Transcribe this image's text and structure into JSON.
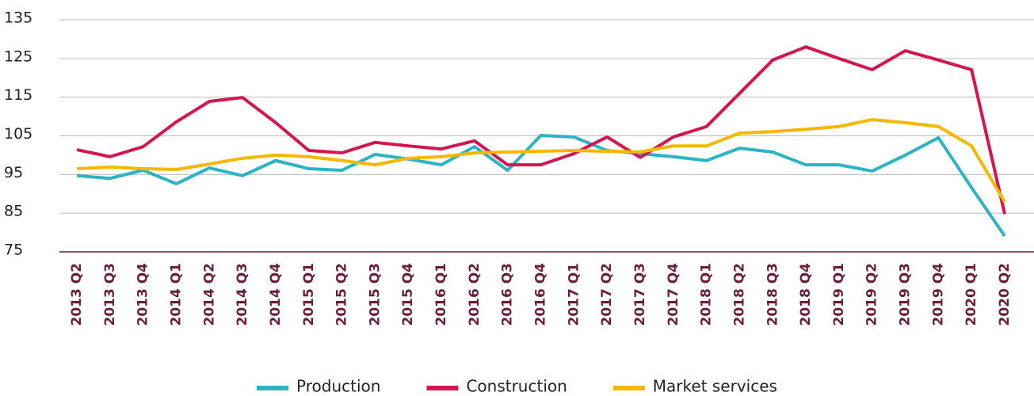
{
  "chart_data": {
    "type": "line",
    "categories": [
      "2013 Q2",
      "2013 Q3",
      "2013 Q4",
      "2014 Q1",
      "2014 Q2",
      "2014 Q3",
      "2014 Q4",
      "2015 Q1",
      "2015 Q2",
      "2015 Q3",
      "2015 Q4",
      "2016 Q1",
      "2016 Q2",
      "2016 Q3",
      "2016 Q4",
      "2017 Q1",
      "2017 Q2",
      "2017 Q3",
      "2017 Q4",
      "2018 Q1",
      "2018 Q2",
      "2018 Q3",
      "2018 Q4",
      "2019 Q1",
      "2019 Q2",
      "2019 Q3",
      "2019 Q4",
      "2020 Q1",
      "2020 Q2"
    ],
    "series": [
      {
        "name": "Production",
        "color": "#2bb4c6",
        "values": [
          94.7,
          94.0,
          96.1,
          92.6,
          96.7,
          94.7,
          98.6,
          96.5,
          96.1,
          100.2,
          99.0,
          97.5,
          102.2,
          96.1,
          105.1,
          104.7,
          101.2,
          100.4,
          99.6,
          98.6,
          101.8,
          100.8,
          97.5,
          97.5,
          95.9,
          100.0,
          104.5,
          91.6,
          79.1
        ]
      },
      {
        "name": "Construction",
        "color": "#d5164e",
        "values": [
          101.4,
          99.6,
          102.2,
          108.6,
          113.9,
          114.9,
          108.4,
          101.2,
          100.6,
          103.3,
          102.4,
          101.6,
          103.7,
          97.5,
          97.5,
          100.4,
          104.7,
          99.4,
          104.7,
          107.4,
          116.0,
          124.6,
          128.0,
          125.0,
          122.1,
          127.0,
          124.6,
          122.1,
          84.8
        ]
      },
      {
        "name": "Market services",
        "color": "#f5b800",
        "values": [
          96.5,
          96.9,
          96.5,
          96.3,
          97.7,
          99.2,
          100.0,
          99.6,
          98.6,
          97.5,
          99.2,
          99.6,
          100.6,
          100.8,
          101.0,
          101.2,
          101.0,
          100.8,
          102.4,
          102.4,
          105.7,
          106.1,
          106.7,
          107.4,
          109.2,
          108.4,
          107.4,
          102.4,
          87.9
        ]
      }
    ],
    "ylim": [
      75,
      135
    ],
    "yticks": [
      75,
      85,
      95,
      105,
      115,
      125,
      135
    ],
    "grid": true,
    "legend": "bottom"
  }
}
